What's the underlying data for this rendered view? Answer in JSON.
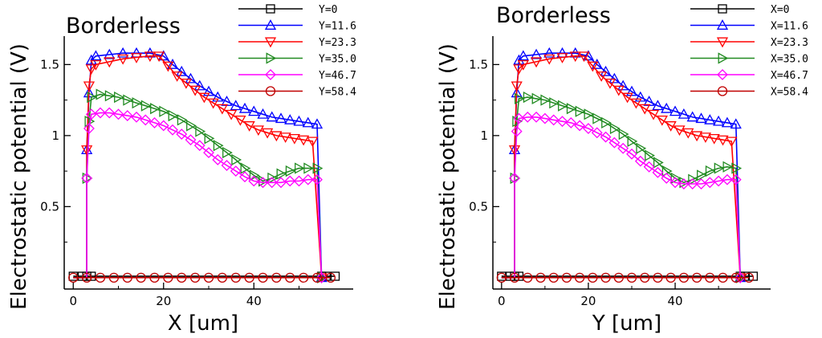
{
  "chart_data": [
    {
      "type": "line",
      "title": "Borderless",
      "xlabel": "X [um]",
      "ylabel": "Electrostatic potential (V)",
      "xlim": [
        -2,
        62
      ],
      "ylim": [
        -0.08,
        1.7
      ],
      "xticks": [
        "0",
        "20",
        "40"
      ],
      "yticks": [
        "0.5",
        "1",
        "1.5"
      ],
      "grid": false,
      "legend_position": "top-right",
      "series": [
        {
          "name": "Y=0",
          "color": "#000000",
          "marker": "square",
          "x": [
            0,
            2,
            3,
            4,
            55,
            56,
            58
          ],
          "y": [
            0.01,
            0.01,
            0.01,
            0.01,
            0.01,
            0.01,
            0.01
          ]
        },
        {
          "name": "Y=11.6",
          "color": "#0000ff",
          "marker": "triangle-up",
          "x": [
            3,
            3.5,
            4,
            5,
            8,
            11,
            14,
            17,
            20,
            22,
            24,
            26,
            28,
            30,
            32,
            34,
            36,
            38,
            40,
            42,
            44,
            46,
            48,
            50,
            52,
            54,
            55
          ],
          "y": [
            0.9,
            1.3,
            1.53,
            1.56,
            1.57,
            1.58,
            1.58,
            1.58,
            1.56,
            1.5,
            1.45,
            1.4,
            1.35,
            1.31,
            1.27,
            1.24,
            1.21,
            1.19,
            1.17,
            1.15,
            1.13,
            1.12,
            1.11,
            1.1,
            1.09,
            1.08,
            0.0
          ]
        },
        {
          "name": "Y=23.3",
          "color": "#ff0000",
          "marker": "triangle-down",
          "x": [
            3,
            3.5,
            4,
            5,
            8,
            11,
            14,
            17,
            19,
            21,
            23,
            25,
            27,
            29,
            31,
            33,
            35,
            37,
            39,
            41,
            43,
            45,
            47,
            49,
            51,
            53,
            55
          ],
          "y": [
            0.9,
            1.35,
            1.47,
            1.5,
            1.52,
            1.54,
            1.55,
            1.56,
            1.56,
            1.49,
            1.42,
            1.37,
            1.32,
            1.27,
            1.23,
            1.19,
            1.15,
            1.11,
            1.07,
            1.04,
            1.02,
            1.0,
            0.99,
            0.98,
            0.97,
            0.96,
            0.0
          ]
        },
        {
          "name": "Y=35.0",
          "color": "#228b22",
          "marker": "triangle-right",
          "x": [
            3,
            3.5,
            4,
            6,
            8,
            10,
            12,
            14,
            16,
            18,
            20,
            22,
            24,
            26,
            28,
            30,
            32,
            34,
            36,
            38,
            40,
            42,
            44,
            46,
            48,
            50,
            52,
            54,
            55
          ],
          "y": [
            0.7,
            1.1,
            1.27,
            1.29,
            1.28,
            1.27,
            1.25,
            1.23,
            1.21,
            1.19,
            1.17,
            1.14,
            1.11,
            1.07,
            1.03,
            0.98,
            0.93,
            0.88,
            0.83,
            0.77,
            0.72,
            0.68,
            0.7,
            0.73,
            0.75,
            0.77,
            0.77,
            0.77,
            0.0
          ]
        },
        {
          "name": "Y=46.7",
          "color": "#ff00ff",
          "marker": "diamond",
          "x": [
            3,
            3.5,
            4,
            6,
            8,
            10,
            12,
            14,
            16,
            18,
            20,
            22,
            24,
            26,
            28,
            30,
            32,
            34,
            36,
            38,
            40,
            42,
            44,
            46,
            48,
            50,
            52,
            54,
            55
          ],
          "y": [
            0.7,
            1.05,
            1.15,
            1.16,
            1.16,
            1.15,
            1.14,
            1.13,
            1.11,
            1.09,
            1.07,
            1.04,
            1.01,
            0.97,
            0.93,
            0.88,
            0.83,
            0.79,
            0.75,
            0.71,
            0.68,
            0.67,
            0.67,
            0.67,
            0.68,
            0.68,
            0.69,
            0.69,
            0.0
          ]
        },
        {
          "name": "Y=58.4",
          "color": "#c00000",
          "marker": "circle",
          "x": [
            0,
            3,
            6,
            9,
            12,
            15,
            18,
            21,
            24,
            27,
            30,
            33,
            36,
            39,
            42,
            45,
            48,
            51,
            54,
            57
          ],
          "y": [
            0,
            0,
            0,
            0,
            0,
            0,
            0,
            0,
            0,
            0,
            0,
            0,
            0,
            0,
            0,
            0,
            0,
            0,
            0,
            0
          ]
        }
      ]
    },
    {
      "type": "line",
      "title": "Borderless",
      "xlabel": "Y [um]",
      "ylabel": "Electrostatic potential (V)",
      "xlim": [
        -2,
        62
      ],
      "ylim": [
        -0.08,
        1.7
      ],
      "xticks": [
        "0",
        "20",
        "40"
      ],
      "yticks": [
        "0.5",
        "1",
        "1.5"
      ],
      "grid": false,
      "legend_position": "top-right",
      "series": [
        {
          "name": "X=0",
          "color": "#000000",
          "marker": "square",
          "x": [
            0,
            2,
            3,
            4,
            55,
            56,
            58
          ],
          "y": [
            0.01,
            0.01,
            0.01,
            0.01,
            0.01,
            0.01,
            0.01
          ]
        },
        {
          "name": "X=11.6",
          "color": "#0000ff",
          "marker": "triangle-up",
          "x": [
            3,
            3.5,
            4,
            5,
            8,
            11,
            14,
            17,
            20,
            22,
            24,
            26,
            28,
            30,
            32,
            34,
            36,
            38,
            40,
            42,
            44,
            46,
            48,
            50,
            52,
            54,
            55
          ],
          "y": [
            0.9,
            1.3,
            1.53,
            1.56,
            1.57,
            1.58,
            1.58,
            1.58,
            1.56,
            1.5,
            1.45,
            1.4,
            1.35,
            1.31,
            1.27,
            1.24,
            1.21,
            1.19,
            1.17,
            1.15,
            1.13,
            1.12,
            1.11,
            1.1,
            1.09,
            1.08,
            0.0
          ]
        },
        {
          "name": "X=23.3",
          "color": "#ff0000",
          "marker": "triangle-down",
          "x": [
            3,
            3.5,
            4,
            5,
            8,
            11,
            14,
            17,
            19,
            21,
            23,
            25,
            27,
            29,
            31,
            33,
            35,
            37,
            39,
            41,
            43,
            45,
            47,
            49,
            51,
            53,
            55
          ],
          "y": [
            0.9,
            1.35,
            1.47,
            1.5,
            1.52,
            1.54,
            1.55,
            1.56,
            1.56,
            1.49,
            1.42,
            1.37,
            1.32,
            1.27,
            1.23,
            1.19,
            1.15,
            1.11,
            1.07,
            1.04,
            1.02,
            1.0,
            0.99,
            0.98,
            0.97,
            0.96,
            0.0
          ]
        },
        {
          "name": "X=35.0",
          "color": "#228b22",
          "marker": "triangle-right",
          "x": [
            3,
            3.5,
            4,
            6,
            8,
            10,
            12,
            14,
            16,
            18,
            20,
            22,
            24,
            26,
            28,
            30,
            32,
            34,
            36,
            38,
            40,
            42,
            44,
            46,
            48,
            50,
            52,
            54,
            55
          ],
          "y": [
            0.7,
            1.1,
            1.26,
            1.27,
            1.26,
            1.25,
            1.23,
            1.21,
            1.19,
            1.17,
            1.15,
            1.12,
            1.09,
            1.05,
            1.01,
            0.96,
            0.91,
            0.86,
            0.81,
            0.75,
            0.7,
            0.67,
            0.69,
            0.72,
            0.75,
            0.77,
            0.78,
            0.77,
            0.0
          ]
        },
        {
          "name": "X=46.7",
          "color": "#ff00ff",
          "marker": "diamond",
          "x": [
            3,
            3.5,
            4,
            6,
            8,
            10,
            12,
            14,
            16,
            18,
            20,
            22,
            24,
            26,
            28,
            30,
            32,
            34,
            36,
            38,
            40,
            42,
            44,
            46,
            48,
            50,
            52,
            54,
            55
          ],
          "y": [
            0.7,
            1.03,
            1.12,
            1.13,
            1.13,
            1.12,
            1.11,
            1.1,
            1.09,
            1.07,
            1.05,
            1.02,
            0.99,
            0.95,
            0.91,
            0.87,
            0.82,
            0.78,
            0.74,
            0.7,
            0.67,
            0.66,
            0.66,
            0.66,
            0.67,
            0.68,
            0.69,
            0.69,
            0.0
          ]
        },
        {
          "name": "X=58.4",
          "color": "#c00000",
          "marker": "circle",
          "x": [
            0,
            3,
            6,
            9,
            12,
            15,
            18,
            21,
            24,
            27,
            30,
            33,
            36,
            39,
            42,
            45,
            48,
            51,
            54,
            57
          ],
          "y": [
            0,
            0,
            0,
            0,
            0,
            0,
            0,
            0,
            0,
            0,
            0,
            0,
            0,
            0,
            0,
            0,
            0,
            0,
            0,
            0
          ]
        }
      ]
    }
  ]
}
